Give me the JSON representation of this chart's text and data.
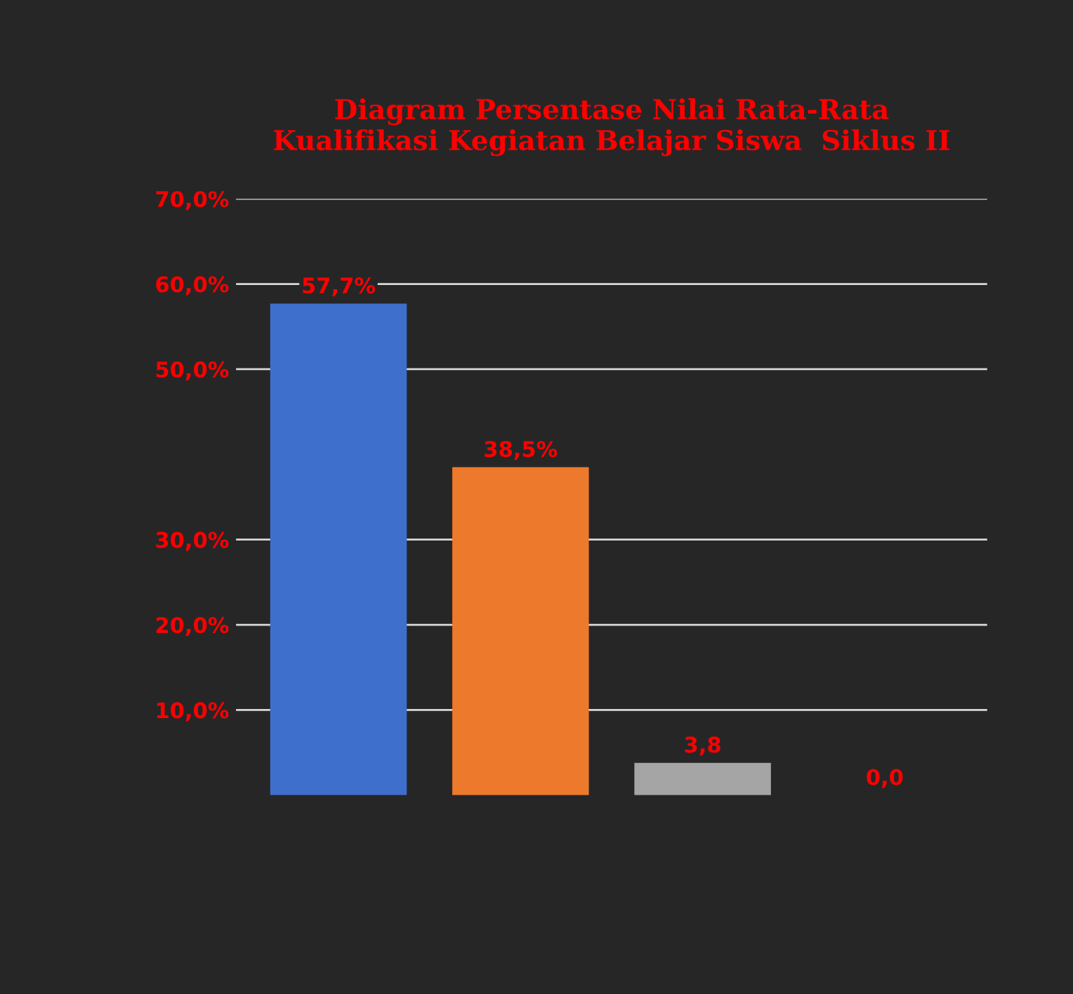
{
  "chart_data": {
    "type": "bar",
    "title": "Diagram Persentase Nilai Rata-Rata\nKualifikasi Kegiatan Belajar Siswa  Siklus II",
    "categories": [
      null,
      null,
      null,
      null
    ],
    "values": [
      57.7,
      38.5,
      3.8,
      0.0
    ],
    "colors": [
      "#3f6fcc",
      "#ed7a2c",
      "#a5a5a5",
      "#ffc000"
    ],
    "value_labels": [
      "57,7%",
      "38,5%",
      "3,8",
      "0,0"
    ],
    "ylim": [
      0,
      70
    ],
    "yticks": [
      {
        "value": 10,
        "label": "10,0%"
      },
      {
        "value": 20,
        "label": "20,0%"
      },
      {
        "value": 30,
        "label": "30,0%"
      },
      {
        "value": 50,
        "label": "50,0%"
      },
      {
        "value": 60,
        "label": "60,0%"
      },
      {
        "value": 70,
        "label": "70,0%"
      }
    ],
    "grid": "y"
  }
}
